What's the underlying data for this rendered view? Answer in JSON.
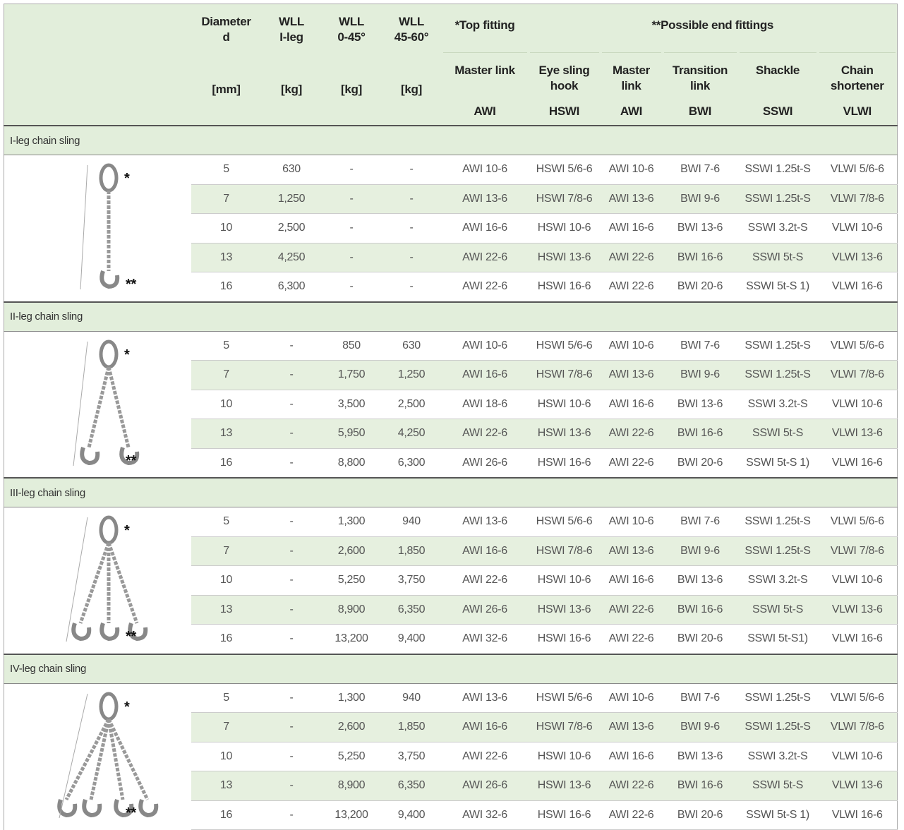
{
  "header": {
    "diameter": {
      "label": "Diameter",
      "sub": "d",
      "unit": "[mm]"
    },
    "wll_leg": {
      "label": "WLL",
      "sub": "I-leg",
      "unit": "[kg]"
    },
    "wll_045": {
      "label": "WLL",
      "sub": "0-45°",
      "unit": "[kg]"
    },
    "wll_4560": {
      "label": "WLL",
      "sub": "45-60°",
      "unit": "[kg]"
    },
    "top_fitting": "*Top fitting",
    "end_fittings": "**Possible end fittings",
    "fittings": [
      {
        "name": "Master link",
        "code": "AWI"
      },
      {
        "name": "Eye sling hook",
        "code": "HSWI"
      },
      {
        "name": "Master link",
        "code": "AWI"
      },
      {
        "name": "Transition link",
        "code": "BWI"
      },
      {
        "name": "Shackle",
        "code": "SSWI"
      },
      {
        "name": "Chain shortener",
        "code": "VLWI"
      }
    ]
  },
  "sections": [
    {
      "title": "I-leg chain sling",
      "top_mark": "*",
      "end_mark": "**",
      "rows": [
        [
          "5",
          "630",
          "-",
          "-",
          "AWI 10-6",
          "HSWI 5/6-6",
          "AWI 10-6",
          "BWI 7-6",
          "SSWI 1.25t-S",
          "VLWI 5/6-6"
        ],
        [
          "7",
          "1,250",
          "-",
          "-",
          "AWI 13-6",
          "HSWI 7/8-6",
          "AWI 13-6",
          "BWI 9-6",
          "SSWI 1.25t-S",
          "VLWI 7/8-6"
        ],
        [
          "10",
          "2,500",
          "-",
          "-",
          "AWI 16-6",
          "HSWI 10-6",
          "AWI 16-6",
          "BWI 13-6",
          "SSWI 3.2t-S",
          "VLWI 10-6"
        ],
        [
          "13",
          "4,250",
          "-",
          "-",
          "AWI 22-6",
          "HSWI 13-6",
          "AWI 22-6",
          "BWI 16-6",
          "SSWI 5t-S",
          "VLWI 13-6"
        ],
        [
          "16",
          "6,300",
          "-",
          "-",
          "AWI 22-6",
          "HSWI 16-6",
          "AWI 22-6",
          "BWI 20-6",
          "SSWI 5t-S 1)",
          "VLWI 16-6"
        ]
      ]
    },
    {
      "title": "II-leg chain sling",
      "top_mark": "*",
      "end_mark": "**",
      "rows": [
        [
          "5",
          "-",
          "850",
          "630",
          "AWI 10-6",
          "HSWI 5/6-6",
          "AWI 10-6",
          "BWI 7-6",
          "SSWI 1.25t-S",
          "VLWI 5/6-6"
        ],
        [
          "7",
          "-",
          "1,750",
          "1,250",
          "AWI 16-6",
          "HSWI 7/8-6",
          "AWI 13-6",
          "BWI 9-6",
          "SSWI 1.25t-S",
          "VLWI 7/8-6"
        ],
        [
          "10",
          "-",
          "3,500",
          "2,500",
          "AWI 18-6",
          "HSWI 10-6",
          "AWI 16-6",
          "BWI 13-6",
          "SSWI 3.2t-S",
          "VLWI 10-6"
        ],
        [
          "13",
          "-",
          "5,950",
          "4,250",
          "AWI 22-6",
          "HSWI 13-6",
          "AWI 22-6",
          "BWI 16-6",
          "SSWI 5t-S",
          "VLWI 13-6"
        ],
        [
          "16",
          "-",
          "8,800",
          "6,300",
          "AWI 26-6",
          "HSWI 16-6",
          "AWI 22-6",
          "BWI 20-6",
          "SSWI 5t-S 1)",
          "VLWI 16-6"
        ]
      ]
    },
    {
      "title": "III-leg chain sling",
      "top_mark": "*",
      "end_mark": "**",
      "rows": [
        [
          "5",
          "-",
          "1,300",
          "940",
          "AWI 13-6",
          "HSWI 5/6-6",
          "AWI 10-6",
          "BWI 7-6",
          "SSWI 1.25t-S",
          "VLWI 5/6-6"
        ],
        [
          "7",
          "-",
          "2,600",
          "1,850",
          "AWI 16-6",
          "HSWI 7/8-6",
          "AWI 13-6",
          "BWI 9-6",
          "SSWI 1.25t-S",
          "VLWI 7/8-6"
        ],
        [
          "10",
          "-",
          "5,250",
          "3,750",
          "AWI 22-6",
          "HSWI 10-6",
          "AWI 16-6",
          "BWI 13-6",
          "SSWI 3.2t-S",
          "VLWI 10-6"
        ],
        [
          "13",
          "-",
          "8,900",
          "6,350",
          "AWI 26-6",
          "HSWI 13-6",
          "AWI 22-6",
          "BWI 16-6",
          "SSWI 5t-S",
          "VLWI 13-6"
        ],
        [
          "16",
          "-",
          "13,200",
          "9,400",
          "AWI 32-6",
          "HSWI 16-6",
          "AWI 22-6",
          "BWI 20-6",
          "SSWI 5t-S1)",
          "VLWI 16-6"
        ]
      ]
    },
    {
      "title": "IV-leg chain sling",
      "top_mark": "*",
      "end_mark": "**",
      "rows": [
        [
          "5",
          "-",
          "1,300",
          "940",
          "AWI 13-6",
          "HSWI 5/6-6",
          "AWI 10-6",
          "BWI 7-6",
          "SSWI 1.25t-S",
          "VLWI 5/6-6"
        ],
        [
          "7",
          "-",
          "2,600",
          "1,850",
          "AWI 16-6",
          "HSWI 7/8-6",
          "AWI 13-6",
          "BWI 9-6",
          "SSWI 1.25t-S",
          "VLWI 7/8-6"
        ],
        [
          "10",
          "-",
          "5,250",
          "3,750",
          "AWI 22-6",
          "HSWI 10-6",
          "AWI 16-6",
          "BWI 13-6",
          "SSWI 3.2t-S",
          "VLWI 10-6"
        ],
        [
          "13",
          "-",
          "8,900",
          "6,350",
          "AWI 26-6",
          "HSWI 13-6",
          "AWI 22-6",
          "BWI 16-6",
          "SSWI 5t-S",
          "VLWI 13-6"
        ],
        [
          "16",
          "-",
          "13,200",
          "9,400",
          "AWI 32-6",
          "HSWI 16-6",
          "AWI 22-6",
          "BWI 20-6",
          "SSWI 5t-S 1)",
          "VLWI 16-6"
        ]
      ]
    }
  ]
}
